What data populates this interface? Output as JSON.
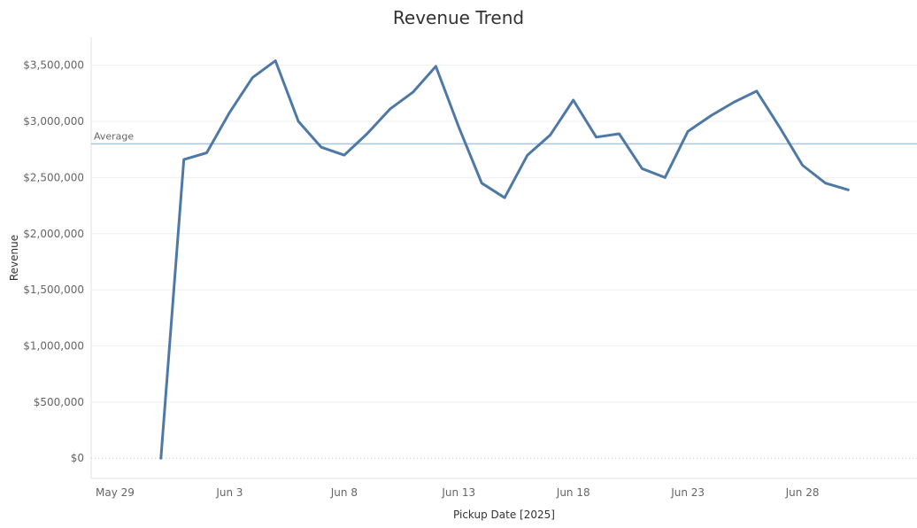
{
  "chart_data": {
    "type": "line",
    "title": "Revenue Trend",
    "xlabel": "Pickup Date [2025]",
    "ylabel": "Revenue",
    "x_tick_labels": [
      {
        "date": "2025-05-29",
        "label": "May 29"
      },
      {
        "date": "2025-06-03",
        "label": "Jun 3"
      },
      {
        "date": "2025-06-08",
        "label": "Jun 8"
      },
      {
        "date": "2025-06-13",
        "label": "Jun 13"
      },
      {
        "date": "2025-06-18",
        "label": "Jun 18"
      },
      {
        "date": "2025-06-23",
        "label": "Jun 23"
      },
      {
        "date": "2025-06-28",
        "label": "Jun 28"
      }
    ],
    "y_tick_labels": [
      {
        "value": 0,
        "label": "$0"
      },
      {
        "value": 500000,
        "label": "$500,000"
      },
      {
        "value": 1000000,
        "label": "$1,000,000"
      },
      {
        "value": 1500000,
        "label": "$1,500,000"
      },
      {
        "value": 2000000,
        "label": "$2,000,000"
      },
      {
        "value": 2500000,
        "label": "$2,500,000"
      },
      {
        "value": 3000000,
        "label": "$3,000,000"
      },
      {
        "value": 3500000,
        "label": "$3,500,000"
      }
    ],
    "xlim": [
      "2025-05-29",
      "2025-07-03"
    ],
    "ylim": [
      -180000,
      3750000
    ],
    "grid": true,
    "line_color": "#4e79a7",
    "reference_line": {
      "label": "Average",
      "value": 2800000,
      "color": "#a9c6e0"
    },
    "series": [
      {
        "x": [
          "2025-05-31",
          "2025-06-01",
          "2025-06-02",
          "2025-06-03",
          "2025-06-04",
          "2025-06-05",
          "2025-06-06",
          "2025-06-07",
          "2025-06-08",
          "2025-06-09",
          "2025-06-10",
          "2025-06-11",
          "2025-06-12",
          "2025-06-13",
          "2025-06-14",
          "2025-06-15",
          "2025-06-16",
          "2025-06-17",
          "2025-06-18",
          "2025-06-19",
          "2025-06-20",
          "2025-06-21",
          "2025-06-22",
          "2025-06-23",
          "2025-06-24",
          "2025-06-25",
          "2025-06-26",
          "2025-06-27",
          "2025-06-28",
          "2025-06-29",
          "2025-06-30"
        ],
        "values": [
          0,
          2660000,
          2720000,
          3080000,
          3390000,
          3540000,
          3000000,
          2770000,
          2700000,
          2890000,
          3110000,
          3260000,
          3490000,
          2950000,
          2450000,
          2320000,
          2700000,
          2880000,
          3190000,
          2860000,
          2890000,
          2580000,
          2500000,
          2910000,
          3050000,
          3170000,
          3270000,
          2950000,
          2610000,
          2450000,
          2390000
        ]
      }
    ]
  }
}
